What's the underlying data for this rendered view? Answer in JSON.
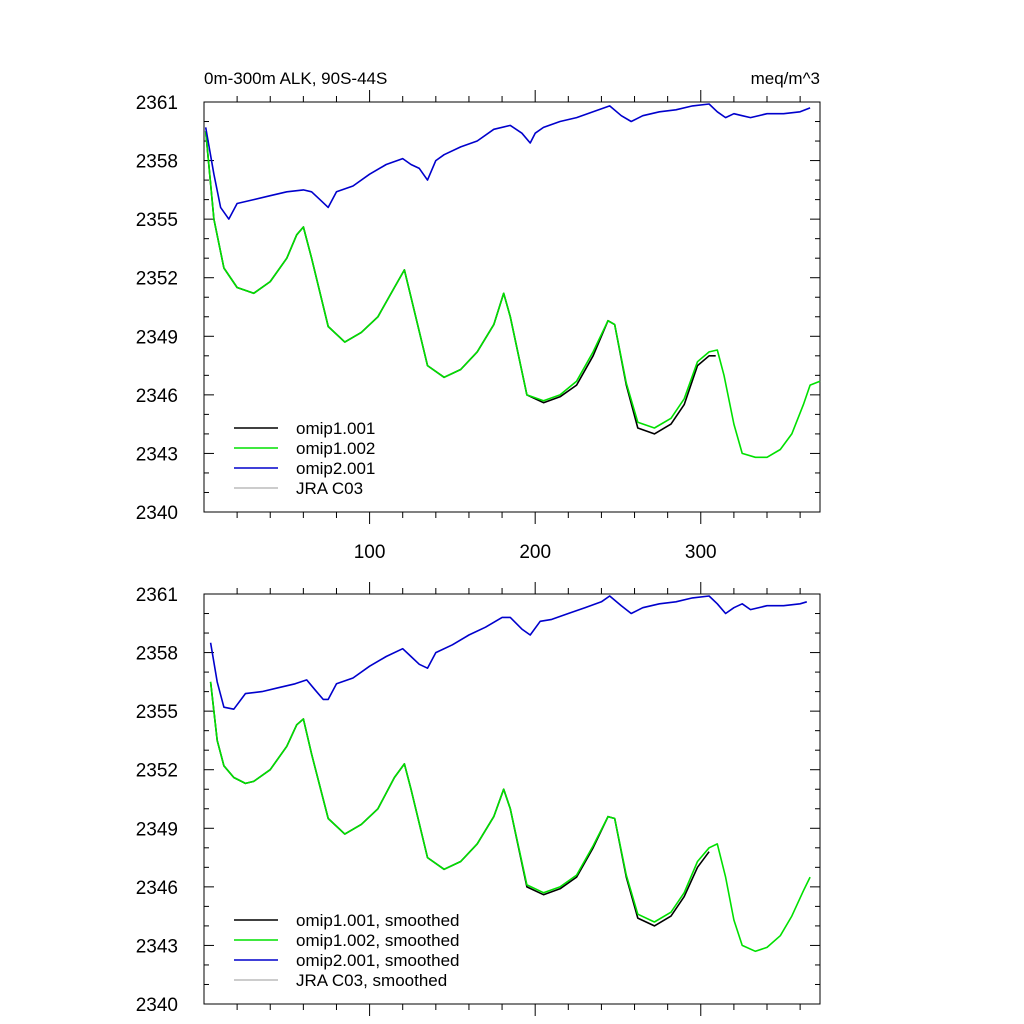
{
  "panel_title_left": "0m-300m ALK, 90S-44S",
  "panel_title_right": "meq/m^3",
  "colors": {
    "omip1_001": "#000000",
    "omip1_002": "#00e000",
    "omip2_001": "#0000cc",
    "jra_c03": "#bbbbbb"
  },
  "chart_data": [
    {
      "type": "line",
      "title": "0m-300m ALK, 90S-44S",
      "units": "meq/m^3",
      "xlabel": "",
      "ylabel": "",
      "xlim": [
        0,
        372
      ],
      "ylim": [
        2340,
        2361
      ],
      "x_ticks": [
        100,
        200,
        300
      ],
      "x_tick_labels": [
        "100",
        "200",
        "300"
      ],
      "y_ticks": [
        2340,
        2343,
        2346,
        2349,
        2352,
        2355,
        2358,
        2361
      ],
      "y_tick_labels": [
        "2340",
        "2343",
        "2346",
        "2349",
        "2352",
        "2355",
        "2358",
        "2361"
      ],
      "legend_position": "bottom-left",
      "grid": false,
      "series": [
        {
          "name": "omip1.001",
          "color": "#000000",
          "x": [
            1,
            6,
            12,
            20,
            30,
            40,
            50,
            56,
            60,
            65,
            75,
            85,
            95,
            105,
            115,
            121,
            125,
            135,
            145,
            155,
            165,
            175,
            181,
            185,
            195,
            205,
            215,
            225,
            235,
            244,
            248,
            255,
            262,
            272,
            282,
            290,
            298,
            305,
            309
          ],
          "y": [
            2359.5,
            2355.0,
            2352.5,
            2351.5,
            2351.2,
            2351.8,
            2353.0,
            2354.2,
            2354.6,
            2353.0,
            2349.5,
            2348.7,
            2349.2,
            2350.0,
            2351.5,
            2352.4,
            2351.0,
            2347.5,
            2346.9,
            2347.3,
            2348.2,
            2349.6,
            2351.2,
            2350.0,
            2346.0,
            2345.6,
            2345.9,
            2346.5,
            2348.0,
            2349.8,
            2349.6,
            2346.5,
            2344.3,
            2344.0,
            2344.5,
            2345.5,
            2347.5,
            2348.0,
            2348.0
          ]
        },
        {
          "name": "omip1.002",
          "color": "#00e000",
          "x": [
            1,
            6,
            12,
            20,
            30,
            40,
            50,
            56,
            60,
            65,
            75,
            85,
            95,
            105,
            115,
            121,
            125,
            135,
            145,
            155,
            165,
            175,
            181,
            185,
            195,
            205,
            215,
            225,
            235,
            244,
            248,
            255,
            262,
            272,
            282,
            290,
            298,
            305,
            310,
            314,
            320,
            325,
            333,
            340,
            348,
            355,
            362,
            366,
            372
          ],
          "y": [
            2359.5,
            2355.0,
            2352.5,
            2351.5,
            2351.2,
            2351.8,
            2353.0,
            2354.2,
            2354.6,
            2353.0,
            2349.5,
            2348.7,
            2349.2,
            2350.0,
            2351.5,
            2352.4,
            2351.0,
            2347.5,
            2346.9,
            2347.3,
            2348.2,
            2349.6,
            2351.2,
            2350.0,
            2346.0,
            2345.7,
            2346.0,
            2346.7,
            2348.2,
            2349.8,
            2349.6,
            2346.6,
            2344.6,
            2344.3,
            2344.8,
            2345.8,
            2347.7,
            2348.2,
            2348.3,
            2347.0,
            2344.5,
            2343.0,
            2342.8,
            2342.8,
            2343.2,
            2344.0,
            2345.5,
            2346.5,
            2346.7
          ]
        },
        {
          "name": "omip2.001",
          "color": "#0000cc",
          "x": [
            1,
            6,
            10,
            15,
            20,
            30,
            40,
            50,
            60,
            65,
            70,
            75,
            80,
            90,
            100,
            110,
            120,
            125,
            130,
            135,
            140,
            145,
            155,
            165,
            175,
            185,
            192,
            197,
            200,
            205,
            215,
            225,
            235,
            245,
            252,
            258,
            265,
            275,
            285,
            295,
            305,
            310,
            315,
            320,
            325,
            330,
            340,
            350,
            360,
            366
          ],
          "y": [
            2359.7,
            2357.3,
            2355.6,
            2355.0,
            2355.8,
            2356.0,
            2356.2,
            2356.4,
            2356.5,
            2356.4,
            2356.0,
            2355.6,
            2356.4,
            2356.7,
            2357.3,
            2357.8,
            2358.1,
            2357.8,
            2357.6,
            2357.0,
            2358.0,
            2358.3,
            2358.7,
            2359.0,
            2359.6,
            2359.8,
            2359.4,
            2358.9,
            2359.4,
            2359.7,
            2360.0,
            2360.2,
            2360.5,
            2360.8,
            2360.3,
            2360.0,
            2360.3,
            2360.5,
            2360.6,
            2360.8,
            2360.9,
            2360.5,
            2360.2,
            2360.4,
            2360.3,
            2360.2,
            2360.4,
            2360.4,
            2360.5,
            2360.7
          ]
        },
        {
          "name": "JRA C03",
          "color": "#bbbbbb",
          "x": [],
          "y": []
        }
      ]
    },
    {
      "type": "line",
      "title": "",
      "xlabel": "",
      "ylabel": "",
      "xlim": [
        0,
        372
      ],
      "ylim": [
        2340,
        2361
      ],
      "x_ticks": [
        100,
        200,
        300
      ],
      "x_tick_labels": [],
      "y_ticks": [
        2340,
        2343,
        2346,
        2349,
        2352,
        2355,
        2358,
        2361
      ],
      "y_tick_labels": [
        "2340",
        "2343",
        "2346",
        "2349",
        "2352",
        "2355",
        "2358",
        "2361"
      ],
      "legend_position": "bottom-left",
      "grid": false,
      "series": [
        {
          "name": "omip1.001, smoothed",
          "color": "#000000",
          "x": [
            4,
            8,
            12,
            18,
            25,
            30,
            40,
            50,
            56,
            60,
            65,
            75,
            85,
            95,
            105,
            115,
            121,
            125,
            135,
            145,
            155,
            165,
            175,
            181,
            185,
            195,
            205,
            215,
            225,
            235,
            244,
            248,
            255,
            262,
            272,
            282,
            290,
            298,
            305
          ],
          "y": [
            2356.5,
            2353.5,
            2352.2,
            2351.6,
            2351.3,
            2351.4,
            2352.0,
            2353.2,
            2354.3,
            2354.6,
            2352.8,
            2349.5,
            2348.7,
            2349.2,
            2350.0,
            2351.6,
            2352.3,
            2351.0,
            2347.5,
            2346.9,
            2347.3,
            2348.2,
            2349.6,
            2351.0,
            2350.0,
            2346.0,
            2345.6,
            2345.9,
            2346.5,
            2348.0,
            2349.6,
            2349.5,
            2346.5,
            2344.4,
            2344.0,
            2344.5,
            2345.5,
            2347.0,
            2347.8
          ]
        },
        {
          "name": "omip1.002, smoothed",
          "color": "#00e000",
          "x": [
            4,
            8,
            12,
            18,
            25,
            30,
            40,
            50,
            56,
            60,
            65,
            75,
            85,
            95,
            105,
            115,
            121,
            125,
            135,
            145,
            155,
            165,
            175,
            181,
            185,
            195,
            205,
            215,
            225,
            235,
            244,
            248,
            255,
            262,
            272,
            282,
            290,
            298,
            305,
            310,
            315,
            320,
            325,
            333,
            340,
            348,
            355,
            362,
            366
          ],
          "y": [
            2356.5,
            2353.5,
            2352.2,
            2351.6,
            2351.3,
            2351.4,
            2352.0,
            2353.2,
            2354.3,
            2354.6,
            2352.8,
            2349.5,
            2348.7,
            2349.2,
            2350.0,
            2351.6,
            2352.3,
            2351.0,
            2347.5,
            2346.9,
            2347.3,
            2348.2,
            2349.6,
            2351.0,
            2350.0,
            2346.1,
            2345.7,
            2346.0,
            2346.6,
            2348.1,
            2349.6,
            2349.5,
            2346.6,
            2344.6,
            2344.2,
            2344.7,
            2345.7,
            2347.3,
            2348.0,
            2348.2,
            2346.5,
            2344.3,
            2343.0,
            2342.7,
            2342.9,
            2343.5,
            2344.5,
            2345.8,
            2346.5
          ]
        },
        {
          "name": "omip2.001, smoothed",
          "color": "#0000cc",
          "x": [
            4,
            8,
            12,
            18,
            25,
            35,
            45,
            55,
            62,
            67,
            72,
            75,
            80,
            90,
            100,
            110,
            120,
            125,
            130,
            135,
            140,
            150,
            160,
            170,
            180,
            185,
            192,
            197,
            203,
            210,
            220,
            230,
            240,
            245,
            252,
            258,
            265,
            275,
            285,
            295,
            305,
            310,
            315,
            320,
            325,
            330,
            340,
            350,
            360,
            364
          ],
          "y": [
            2358.5,
            2356.5,
            2355.2,
            2355.1,
            2355.9,
            2356.0,
            2356.2,
            2356.4,
            2356.6,
            2356.1,
            2355.6,
            2355.6,
            2356.4,
            2356.7,
            2357.3,
            2357.8,
            2358.2,
            2357.8,
            2357.4,
            2357.2,
            2358.0,
            2358.4,
            2358.9,
            2359.3,
            2359.8,
            2359.8,
            2359.2,
            2358.9,
            2359.6,
            2359.7,
            2360.0,
            2360.3,
            2360.6,
            2360.9,
            2360.4,
            2360.0,
            2360.3,
            2360.5,
            2360.6,
            2360.8,
            2360.9,
            2360.5,
            2360.0,
            2360.3,
            2360.5,
            2360.2,
            2360.4,
            2360.4,
            2360.5,
            2360.6
          ]
        },
        {
          "name": "JRA C03, smoothed",
          "color": "#bbbbbb",
          "x": [],
          "y": []
        }
      ]
    }
  ]
}
